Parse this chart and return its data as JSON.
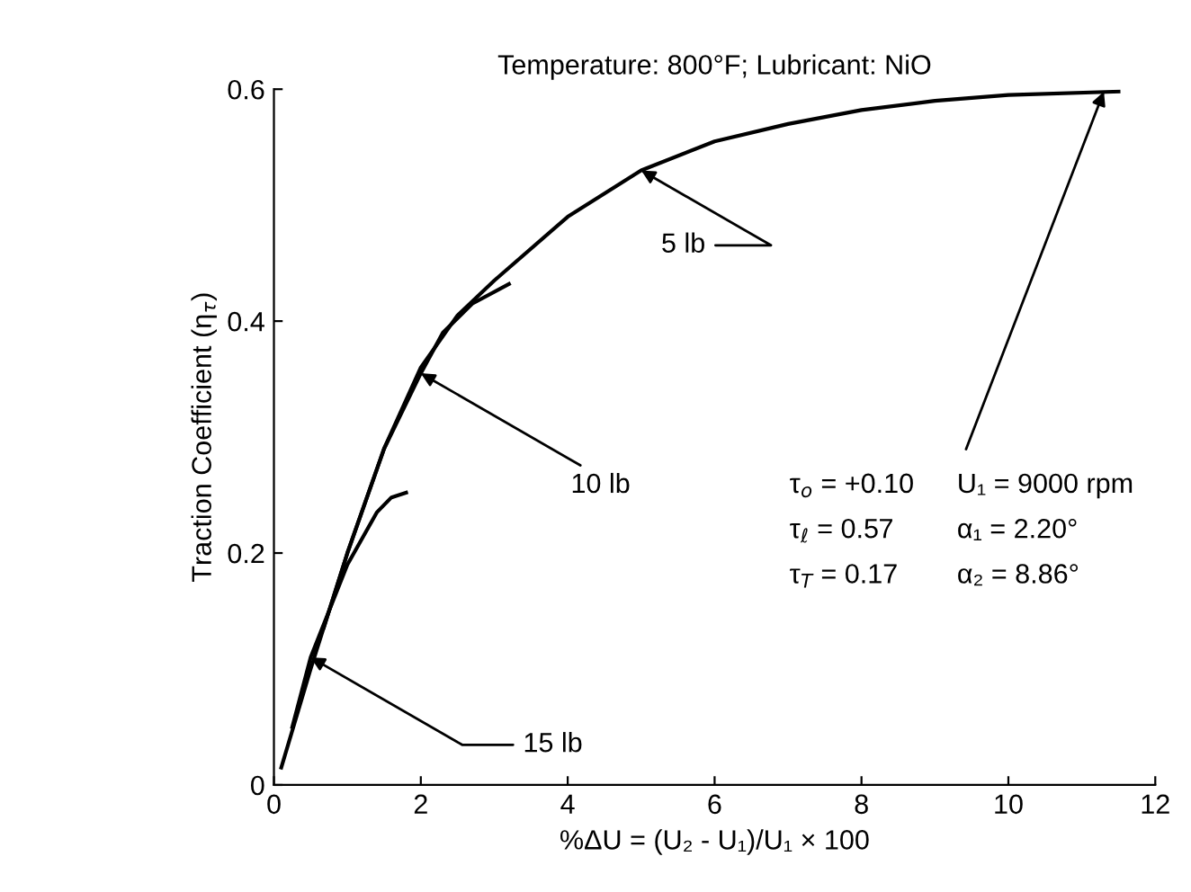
{
  "chart_data": {
    "type": "line",
    "title": "Temperature: 800°F; Lubricant: NiO",
    "xlabel": "%ΔU = (U₂ - U₁)/U₁ × 100",
    "ylabel": "Traction Coefficient (η$_{τ}$)",
    "xlim": [
      0,
      12
    ],
    "ylim": [
      0,
      0.6
    ],
    "xticks": [
      0,
      2,
      4,
      6,
      8,
      10,
      12
    ],
    "yticks": [
      0,
      {
        "value": 0.2,
        "label": "0.2"
      },
      {
        "value": 0.4,
        "label": "0.4"
      },
      {
        "value": 0.6,
        "label": "0.6"
      }
    ],
    "grid": false,
    "legend": false,
    "marker": "none",
    "line_style": "solid",
    "series": [
      {
        "name": "5 lb",
        "color": "#000000",
        "x": [
          0.1,
          0.5,
          1,
          1.5,
          2,
          2.5,
          3,
          4,
          5,
          6,
          7,
          8,
          9,
          10,
          11.5
        ],
        "values": [
          0.015,
          0.1,
          0.2,
          0.29,
          0.36,
          0.405,
          0.435,
          0.49,
          0.53,
          0.555,
          0.57,
          0.582,
          0.59,
          0.595,
          0.598
        ]
      },
      {
        "name": "10 lb",
        "color": "#000000",
        "x": [
          0.68,
          1,
          1.5,
          2,
          2.3,
          2.7,
          3.2
        ],
        "values": [
          0.136,
          0.2,
          0.29,
          0.355,
          0.39,
          0.415,
          0.432
        ]
      },
      {
        "name": "15 lb",
        "color": "#000000",
        "x": [
          0.25,
          0.5,
          1,
          1.4,
          1.6,
          1.8
        ],
        "values": [
          0.05,
          0.11,
          0.19,
          0.235,
          0.248,
          0.252
        ]
      }
    ],
    "annotations": [
      "τ$_{o}$ = +0.10",
      "τ$_{ℓ}$ = 0.57",
      "τ$_{T}$ = 0.17",
      {
        "text": "U₁ = 9000 rpm",
        "x": 11.3,
        "y": 0.598
      },
      "α₁ = 2.20°",
      "α₂ = 8.86°"
    ]
  }
}
